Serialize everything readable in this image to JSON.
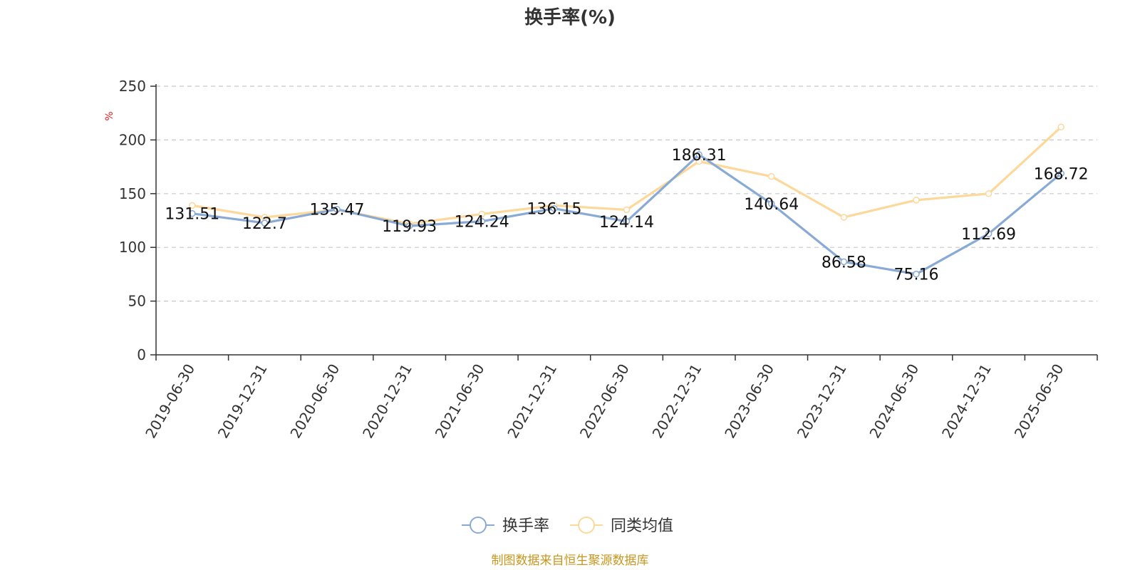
{
  "colors": {
    "series_1": "#8aaad6",
    "series_2": "#fcd89a",
    "grid": "#c8c8c8",
    "axis": "#333333",
    "unit": "#e02020",
    "source": "#c8961e"
  },
  "chart_data": {
    "type": "line",
    "title": "换手率(%)",
    "ylabel": "%",
    "xlabel": "",
    "ylim": [
      0,
      250
    ],
    "yticks": [
      0,
      50,
      100,
      150,
      200,
      250
    ],
    "grid": "horizontal-dashed",
    "legend_position": "bottom-center",
    "categories": [
      "2019-06-30",
      "2019-12-31",
      "2020-06-30",
      "2020-12-31",
      "2021-06-30",
      "2021-12-31",
      "2022-06-30",
      "2022-12-31",
      "2023-06-30",
      "2023-12-31",
      "2024-06-30",
      "2024-12-31",
      "2025-06-30"
    ],
    "series": [
      {
        "name": "换手率",
        "values": [
          131.51,
          122.7,
          135.47,
          119.93,
          124.24,
          136.15,
          124.14,
          186.31,
          140.64,
          86.58,
          75.16,
          112.69,
          168.72
        ],
        "labels": [
          "131.51",
          "122.7",
          "135.47",
          "119.93",
          "124.24",
          "136.15",
          "124.14",
          "186.31",
          "140.64",
          "86.58",
          "75.16",
          "112.69",
          "168.72"
        ]
      },
      {
        "name": "同类均值",
        "values": [
          139,
          128,
          135,
          122,
          131,
          139,
          135,
          180,
          166,
          128,
          144,
          150,
          212
        ]
      }
    ]
  },
  "footer": {
    "source": "制图数据来自恒生聚源数据库"
  }
}
